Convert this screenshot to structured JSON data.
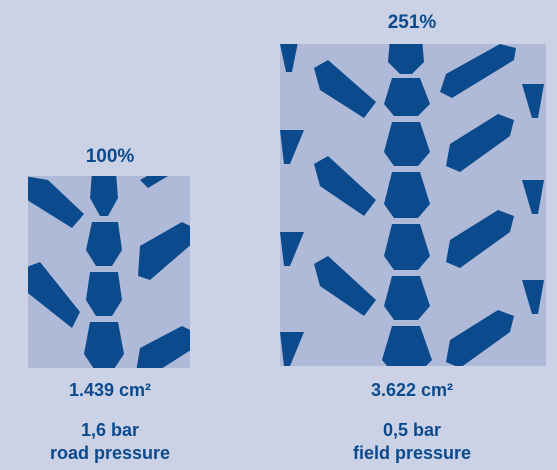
{
  "road": {
    "percent": "100%",
    "area": "1.439 cm²",
    "pressure": "1,6 bar",
    "label": "road pressure"
  },
  "field": {
    "percent": "251%",
    "area": "3.622 cm²",
    "pressure": "0,5 bar",
    "label": "field pressure"
  },
  "colors": {
    "background": "#cbd2e6",
    "patch": "#afbad8",
    "tread": "#0b4a8d",
    "text": "#0b4a8d"
  }
}
